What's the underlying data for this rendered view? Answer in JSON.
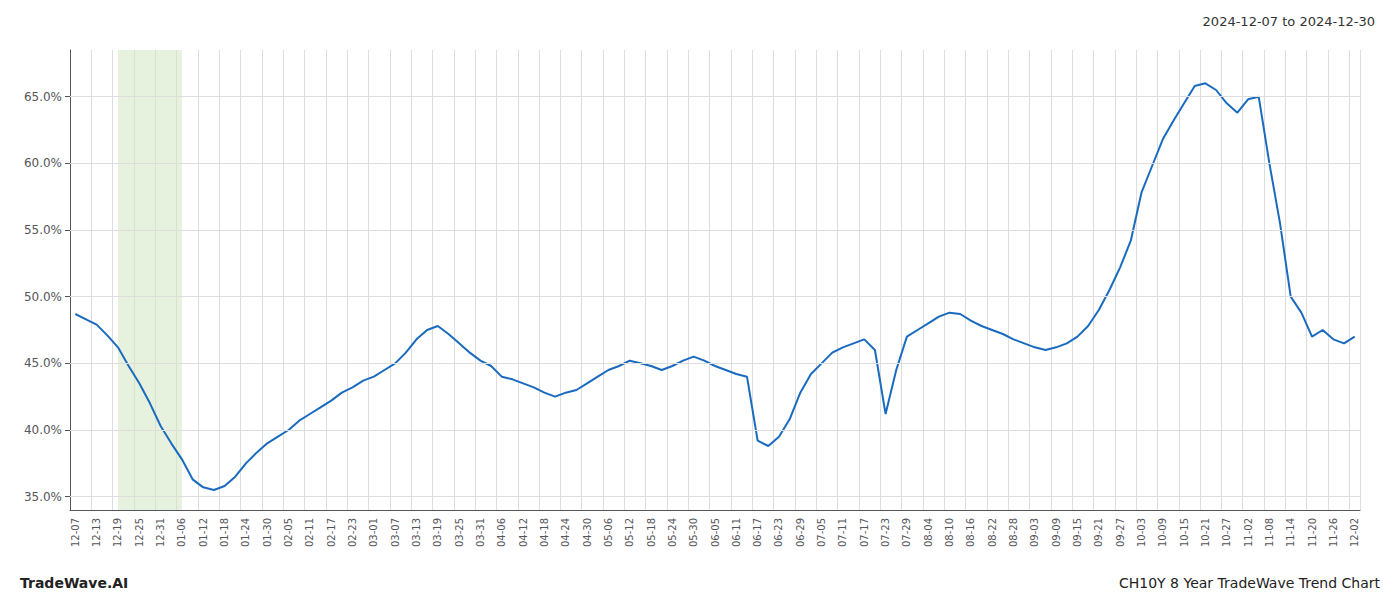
{
  "chart_data": {
    "type": "line",
    "title": "2024-12-07 to 2024-12-30",
    "annotations": [
      "TradeWave.AI",
      "CH10Y 8 Year TradeWave Trend Chart"
    ],
    "color": "#1a6bbf",
    "grid": true,
    "highlight": {
      "start": "12-19",
      "end": "01-06",
      "color": "#d4e8c2"
    },
    "ylim": [
      0.34,
      0.685
    ],
    "yticks": [
      {
        "value": 0.35,
        "label": "35.0%"
      },
      {
        "value": 0.4,
        "label": "40.0%"
      },
      {
        "value": 0.45,
        "label": "45.0%"
      },
      {
        "value": 0.5,
        "label": "50.0%"
      },
      {
        "value": 0.55,
        "label": "55.0%"
      },
      {
        "value": 0.6,
        "label": "60.0%"
      },
      {
        "value": 0.65,
        "label": "65.0%"
      }
    ],
    "categories": [
      "12-07",
      null,
      "12-13",
      null,
      "12-19",
      null,
      "12-25",
      null,
      "12-31",
      null,
      "01-06",
      null,
      "01-12",
      null,
      "01-18",
      null,
      "01-24",
      null,
      "01-30",
      null,
      "02-05",
      null,
      "02-11",
      null,
      "02-17",
      null,
      "02-23",
      null,
      "03-01",
      null,
      "03-07",
      null,
      "03-13",
      null,
      "03-19",
      null,
      "03-25",
      null,
      "03-31",
      null,
      "04-06",
      null,
      "04-12",
      null,
      "04-18",
      null,
      "04-24",
      null,
      "04-30",
      null,
      "05-06",
      null,
      "05-12",
      null,
      "05-18",
      null,
      "05-24",
      null,
      "05-30",
      null,
      "06-05",
      null,
      "06-11",
      null,
      "06-17",
      null,
      "06-23",
      null,
      "06-29",
      null,
      "07-05",
      null,
      "07-11",
      null,
      "07-17",
      null,
      "07-23",
      null,
      "07-29",
      null,
      "08-04",
      null,
      "08-10",
      null,
      "08-16",
      null,
      "08-22",
      null,
      "08-28",
      null,
      "09-03",
      null,
      "09-09",
      null,
      "09-15",
      null,
      "09-21",
      null,
      "09-27",
      null,
      "10-03",
      null,
      "10-09",
      null,
      "10-15",
      null,
      "10-21",
      null,
      "10-27",
      null,
      "11-02",
      null,
      "11-08",
      null,
      "11-14",
      null,
      "11-20",
      null,
      "11-26",
      null,
      "12-02"
    ],
    "values": [
      0.487,
      0.483,
      0.479,
      0.471,
      0.462,
      0.448,
      0.435,
      0.42,
      0.403,
      0.39,
      0.378,
      0.363,
      0.357,
      0.355,
      0.358,
      0.365,
      0.375,
      0.383,
      0.39,
      0.395,
      0.4,
      0.407,
      0.412,
      0.417,
      0.422,
      0.428,
      0.432,
      0.437,
      0.44,
      0.445,
      0.45,
      0.458,
      0.468,
      0.475,
      0.478,
      0.472,
      0.465,
      0.458,
      0.452,
      0.448,
      0.44,
      0.438,
      0.435,
      0.432,
      0.428,
      0.425,
      0.428,
      0.43,
      0.435,
      0.44,
      0.445,
      0.448,
      0.452,
      0.45,
      0.448,
      0.445,
      0.448,
      0.452,
      0.455,
      0.452,
      0.448,
      0.445,
      0.442,
      0.44,
      0.392,
      0.388,
      0.395,
      0.408,
      0.428,
      0.442,
      0.45,
      0.458,
      0.462,
      0.465,
      0.468,
      0.46,
      0.412,
      0.445,
      0.47,
      0.475,
      0.48,
      0.485,
      0.488,
      0.487,
      0.482,
      0.478,
      0.475,
      0.472,
      0.468,
      0.465,
      0.462,
      0.46,
      0.462,
      0.465,
      0.47,
      0.478,
      0.49,
      0.505,
      0.522,
      0.542,
      0.578,
      0.598,
      0.618,
      0.632,
      0.645,
      0.658,
      0.66,
      0.655,
      0.645,
      0.638,
      0.648,
      0.65,
      0.6,
      0.555,
      0.5,
      0.488,
      0.47,
      0.475,
      0.468,
      0.465,
      0.47
    ]
  }
}
